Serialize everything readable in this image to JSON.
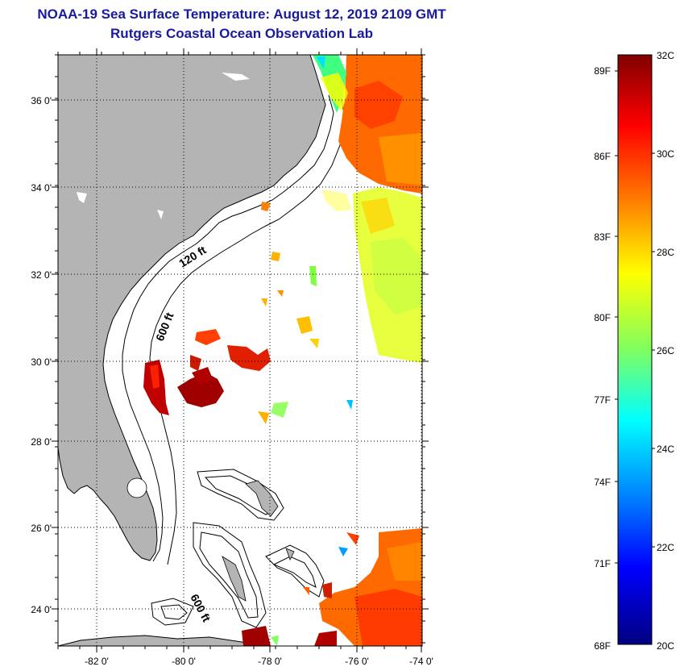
{
  "header": {
    "title": "NOAA-19 Sea Surface Temperature:  August 12, 2019 2109 GMT",
    "subtitle": "Rutgers Coastal Ocean Observation Lab"
  },
  "map": {
    "lat_labels": [
      "36 0'",
      "34 0'",
      "32 0'",
      "30 0'",
      "28 0'",
      "26 0'",
      "24 0'"
    ],
    "lon_labels": [
      "-82 0'",
      "-80 0'",
      "-78 0'",
      "-76 0'",
      "-74 0'"
    ],
    "contours": {
      "c120": "120 ft",
      "c600a": "600 ft",
      "c600b": "600 ft"
    },
    "colors": {
      "land": "#b4b4b4",
      "ocean_missing": "#ffffff"
    }
  },
  "colorbar": {
    "fahrenheit_labels": [
      "89F",
      "86F",
      "83F",
      "80F",
      "77F",
      "74F",
      "71F",
      "68F"
    ],
    "celsius_labels": [
      "32C",
      "30C",
      "28C",
      "26C",
      "24C",
      "22C",
      "20C"
    ],
    "gradient": [
      "#800000",
      "#ff0000",
      "#ff8000",
      "#ffff00",
      "#80ff80",
      "#00ffff",
      "#0080ff",
      "#0000ff",
      "#000080"
    ]
  }
}
